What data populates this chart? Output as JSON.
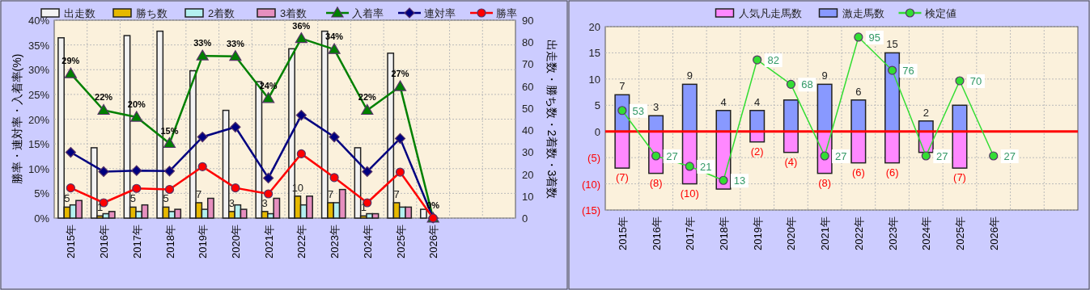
{
  "chart_data": [
    {
      "type": "bar",
      "categories": [
        "2015年",
        "2016年",
        "2017年",
        "2018年",
        "2019年",
        "2020年",
        "2021年",
        "2022年",
        "2023年",
        "2024年",
        "2025年",
        "2026年",
        null,
        null
      ],
      "ylabel": "勝率・連対率・入着率(%)",
      "y2label": "出走数・勝ち数・2着数・3着数",
      "ylim": [
        0,
        40
      ],
      "yticks": [
        {
          "value": 0,
          "label": "0%"
        },
        {
          "value": 5,
          "label": "5%"
        },
        {
          "value": 10,
          "label": "10%"
        },
        {
          "value": 15,
          "label": "15%"
        },
        {
          "value": 20,
          "label": "20%"
        },
        {
          "value": 25,
          "label": "25%"
        },
        {
          "value": 30,
          "label": "30%"
        },
        {
          "value": 35,
          "label": "35%"
        },
        {
          "value": 40,
          "label": "40%"
        }
      ],
      "y2lim": [
        0,
        90
      ],
      "y2ticks": [
        0,
        10,
        20,
        30,
        40,
        50,
        60,
        70,
        80,
        90
      ],
      "grid": true,
      "legend": "top",
      "series": [
        {
          "name": "出走数",
          "axis": "y2",
          "color": "#f2f2f2",
          "values": [
            82,
            32,
            83,
            85,
            67,
            49,
            62,
            77,
            85,
            32,
            75,
            4,
            null,
            null
          ]
        },
        {
          "name": "勝ち数",
          "axis": "y2",
          "color": "#e6b800",
          "values": [
            5,
            1,
            5,
            5,
            7,
            3,
            3,
            10,
            7,
            1,
            7,
            0,
            null,
            null
          ],
          "value_labels": [
            "5",
            "1",
            "5",
            "5",
            "7",
            "3",
            "3",
            "10",
            "7",
            "1",
            "7",
            null,
            null,
            null
          ]
        },
        {
          "name": "2着数",
          "axis": "y2",
          "color": "#b3f0f0",
          "values": [
            6,
            2,
            3,
            3,
            4,
            6,
            2,
            6,
            7,
            2,
            5,
            0,
            null,
            null
          ]
        },
        {
          "name": "3着数",
          "axis": "y2",
          "color": "#e68fbf",
          "values": [
            8,
            3,
            6,
            4,
            9,
            4,
            9,
            10,
            13,
            2,
            5,
            0,
            null,
            null
          ]
        },
        {
          "name": "入着率",
          "type": "line",
          "color": "#008000",
          "marker": "triangle",
          "values": [
            29.2,
            21.8,
            20.4,
            15.1,
            32.8,
            32.7,
            24.2,
            36.3,
            34.1,
            21.8,
            26.6,
            0,
            null,
            null
          ],
          "value_labels": [
            "29%",
            "22%",
            "20%",
            "15%",
            "33%",
            "33%",
            "24%",
            "36%",
            "34%",
            "22%",
            "27%",
            "0%",
            null,
            null
          ]
        },
        {
          "name": "連対率",
          "type": "line",
          "color": "#000080",
          "marker": "diamond",
          "values": [
            13.3,
            9.4,
            9.6,
            9.5,
            16.4,
            18.4,
            8.1,
            20.8,
            16.4,
            9.4,
            16.1,
            0,
            null,
            null
          ]
        },
        {
          "name": "勝率",
          "type": "line",
          "color": "#ff0000",
          "marker": "circle",
          "values": [
            6.1,
            3.1,
            6.0,
            5.8,
            10.4,
            6.1,
            4.9,
            13.0,
            8.2,
            3.1,
            9.3,
            0,
            null,
            null
          ]
        }
      ]
    },
    {
      "type": "bar",
      "stacked": true,
      "categories": [
        "2015年",
        "2016年",
        "2017年",
        "2018年",
        "2019年",
        "2020年",
        "2021年",
        "2022年",
        "2023年",
        "2024年",
        "2025年",
        "2026年",
        null,
        null
      ],
      "ylim": [
        -15,
        20
      ],
      "yticks": [
        {
          "value": -15,
          "label": "(15)"
        },
        {
          "value": -10,
          "label": "(10)"
        },
        {
          "value": -5,
          "label": "(5)"
        },
        0,
        5,
        10,
        15,
        20
      ],
      "grid": true,
      "legend": "top",
      "ref_lines": [
        {
          "axis": "y",
          "value": 0,
          "color": "#ff0000"
        }
      ],
      "series": [
        {
          "name": "人気凡走馬数",
          "color": "#ff88ff",
          "values": [
            -7,
            -8,
            -10,
            -11,
            -2,
            -4,
            -8,
            -6,
            -6,
            -4,
            -7,
            null,
            null,
            null
          ],
          "value_labels": [
            "(7)",
            "(8)",
            "(10)",
            null,
            "(2)",
            "(4)",
            "(8)",
            "(6)",
            "(6)",
            null,
            "(7)",
            null,
            null,
            null
          ]
        },
        {
          "name": "激走馬数",
          "color": "#8899ff",
          "values": [
            7,
            3,
            9,
            4,
            4,
            6,
            9,
            6,
            15,
            2,
            5,
            null,
            null,
            null
          ],
          "value_labels": [
            "7",
            "3",
            "9",
            "4",
            "4",
            null,
            "9",
            "6",
            "15",
            "2",
            null,
            null,
            null,
            null
          ]
        },
        {
          "name": "検定値",
          "type": "line",
          "axis": "y2",
          "color": "#33dd33",
          "marker": "circle",
          "values": [
            53,
            27,
            21,
            13,
            82,
            68,
            27,
            95,
            76,
            27,
            70,
            27,
            null,
            null
          ],
          "data_labels": true
        }
      ],
      "y2lim": [
        -4,
        101
      ]
    }
  ]
}
